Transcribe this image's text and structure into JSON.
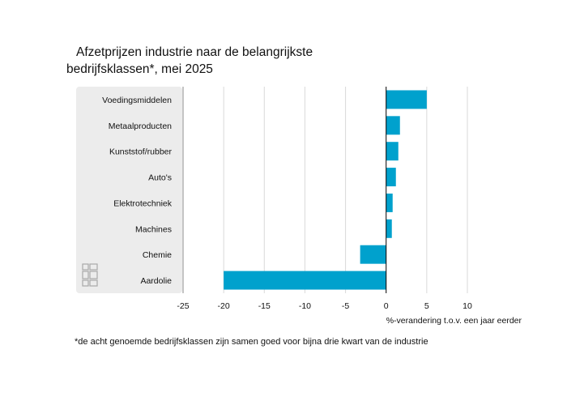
{
  "title": {
    "line1": "Afzetprijzen industrie naar de belangrijkste",
    "line2": "bedrijfsklassen*, mei 2025"
  },
  "footnote": "*de acht genoemde bedrijfsklassen zijn samen goed voor bijna drie kwart van de industrie",
  "logo_icon": "cbs-logo-icon",
  "colors": {
    "bar": "#00a1cd",
    "label_panel": "#ececec",
    "grid": "#d9d9d9",
    "zero_line": "#000000"
  },
  "chart_data": {
    "type": "bar",
    "orientation": "horizontal",
    "title": "Afzetprijzen industrie naar de belangrijkste bedrijfsklassen*, mei 2025",
    "categories": [
      "Voedingsmiddelen",
      "Metaalproducten",
      "Kunststof/rubber",
      "Auto's",
      "Elektrotechniek",
      "Machines",
      "Chemie",
      "Aardolie"
    ],
    "values": [
      5.0,
      1.7,
      1.5,
      1.2,
      0.8,
      0.7,
      -3.2,
      -20.0
    ],
    "xlabel": "%-verandering t.o.v. een jaar eerder",
    "xlim": [
      -25,
      10
    ],
    "xticks": [
      "-25",
      "-20",
      "-15",
      "-10",
      "-5",
      "0",
      "5",
      "10"
    ],
    "grid": true
  }
}
